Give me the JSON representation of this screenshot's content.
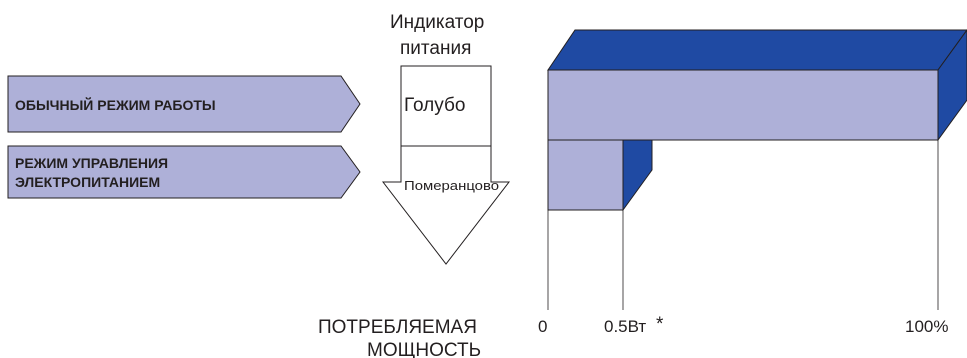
{
  "indicator": {
    "title_line1": "Индикатор",
    "title_line2": "питания",
    "blue_label": "Голубо",
    "orange_label": "Померанцово"
  },
  "modes": [
    {
      "label": "ОБЫЧНЫЙ РЕЖИМ РАБОТЫ",
      "power_fraction": 1.0
    },
    {
      "label_line1": "РЕЖИМ УПРАВЛЕНИЯ",
      "label_line2": "ЭЛЕКТРОПИТАНИЕМ",
      "power_label": "0.5Вт"
    }
  ],
  "axis": {
    "title_line1": "ПОТРЕБЛЯЕМАЯ",
    "title_line2": "МОЩНОСТЬ",
    "tick_zero": "0",
    "tick_low": "0.5Вт",
    "tick_low_note": "*",
    "tick_max": "100%"
  },
  "colors": {
    "bar_face": "#aeb0d8",
    "bar_side": "#1f4aa3",
    "tag_fill": "#aeb0d8",
    "stroke": "#231f20"
  }
}
